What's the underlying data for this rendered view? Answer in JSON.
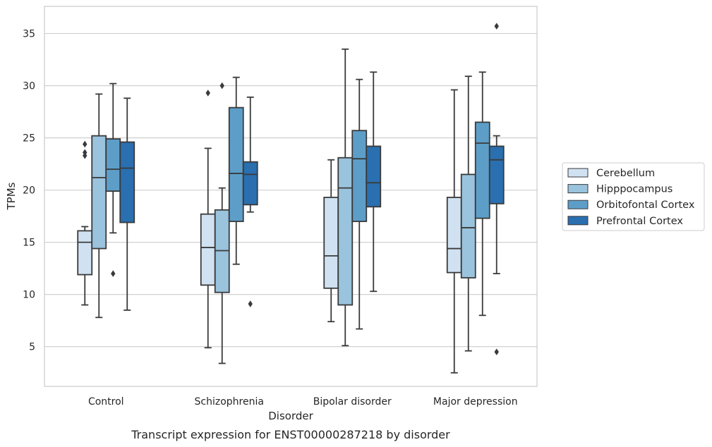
{
  "chart_data": {
    "type": "box",
    "title": "",
    "caption": "Transcript expression for ENST00000287218 by disorder",
    "xlabel": "Disorder",
    "ylabel": "TPMs",
    "ylim": [
      1.2,
      37.6
    ],
    "yticks": [
      5,
      10,
      15,
      20,
      25,
      30,
      35
    ],
    "grid": true,
    "legend_position": "right",
    "categories": [
      "Control",
      "Schizophrenia",
      "Bipolar disorder",
      "Major depression"
    ],
    "series": [
      {
        "name": "Cerebellum",
        "color": "#d0e2f2",
        "boxes": [
          {
            "whisker_low": 9.0,
            "q1": 11.9,
            "median": 15.0,
            "q3": 16.1,
            "whisker_high": 16.5,
            "outliers": [
              23.3,
              23.6,
              24.4
            ]
          },
          {
            "whisker_low": 4.9,
            "q1": 10.9,
            "median": 14.5,
            "q3": 17.7,
            "whisker_high": 24.0,
            "outliers": [
              29.3
            ]
          },
          {
            "whisker_low": 7.4,
            "q1": 10.6,
            "median": 13.7,
            "q3": 19.3,
            "whisker_high": 22.9,
            "outliers": []
          },
          {
            "whisker_low": 2.5,
            "q1": 12.1,
            "median": 14.4,
            "q3": 19.3,
            "whisker_high": 29.6,
            "outliers": []
          }
        ]
      },
      {
        "name": "Hipppocampus",
        "color": "#9ac3dd",
        "boxes": [
          {
            "whisker_low": 7.8,
            "q1": 14.4,
            "median": 21.2,
            "q3": 25.2,
            "whisker_high": 29.2,
            "outliers": []
          },
          {
            "whisker_low": 3.4,
            "q1": 10.2,
            "median": 14.2,
            "q3": 18.1,
            "whisker_high": 20.2,
            "outliers": [
              30.0
            ]
          },
          {
            "whisker_low": 5.1,
            "q1": 9.0,
            "median": 20.2,
            "q3": 23.1,
            "whisker_high": 33.5,
            "outliers": []
          },
          {
            "whisker_low": 4.6,
            "q1": 11.6,
            "median": 16.4,
            "q3": 21.5,
            "whisker_high": 30.9,
            "outliers": []
          }
        ]
      },
      {
        "name": "Orbitofontal Cortex",
        "color": "#5d9ec9",
        "boxes": [
          {
            "whisker_low": 15.9,
            "q1": 19.9,
            "median": 22.0,
            "q3": 24.9,
            "whisker_high": 30.2,
            "outliers": [
              12.0
            ]
          },
          {
            "whisker_low": 12.9,
            "q1": 17.0,
            "median": 21.6,
            "q3": 27.9,
            "whisker_high": 30.8,
            "outliers": []
          },
          {
            "whisker_low": 6.7,
            "q1": 17.0,
            "median": 23.0,
            "q3": 25.7,
            "whisker_high": 30.6,
            "outliers": []
          },
          {
            "whisker_low": 8.0,
            "q1": 17.3,
            "median": 24.5,
            "q3": 26.5,
            "whisker_high": 31.3,
            "outliers": []
          }
        ]
      },
      {
        "name": "Prefrontal Cortex",
        "color": "#2a6faf",
        "boxes": [
          {
            "whisker_low": 8.5,
            "q1": 16.9,
            "median": 22.1,
            "q3": 24.6,
            "whisker_high": 28.8,
            "outliers": []
          },
          {
            "whisker_low": 17.9,
            "q1": 18.6,
            "median": 21.5,
            "q3": 22.7,
            "whisker_high": 28.9,
            "outliers": [
              9.1
            ]
          },
          {
            "whisker_low": 10.3,
            "q1": 18.4,
            "median": 20.7,
            "q3": 24.2,
            "whisker_high": 31.3,
            "outliers": []
          },
          {
            "whisker_low": 12.0,
            "q1": 18.7,
            "median": 22.9,
            "q3": 24.2,
            "whisker_high": 25.2,
            "outliers": [
              4.5,
              35.7
            ]
          }
        ]
      }
    ]
  }
}
